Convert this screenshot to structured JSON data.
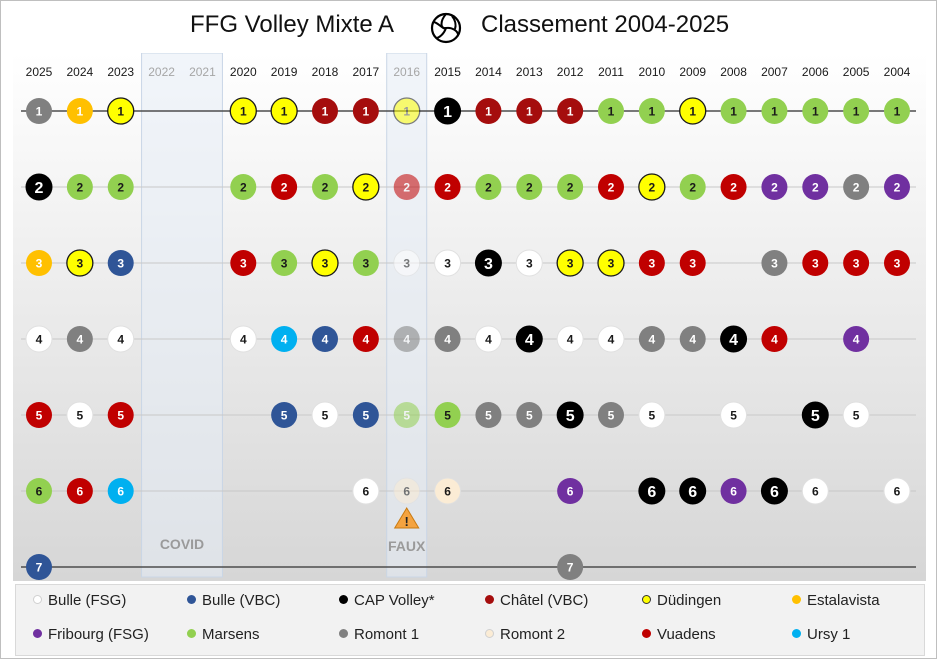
{
  "title": {
    "left": "FFG Volley Mixte A",
    "right": "Classement 2004-2025",
    "icon": "volleyball-icon"
  },
  "colors": {
    "Bulle (FSG)": "#ffffff",
    "Bulle (VBC)": "#2f5597",
    "CAP Volley*": "#000000",
    "Châtel (VBC)": "#a50d0d",
    "Düdingen": "#ffff00",
    "Estalavista": "#ffc000",
    "Fribourg (FSG)": "#7030a0",
    "Marsens": "#92d050",
    "Romont 1": "#808080",
    "Romont 2": "#fbecd5",
    "Vuadens": "#c00000",
    "Ursy 1": "#00b0f0"
  },
  "legend": [
    {
      "label": "Bulle (FSG)",
      "color": "#ffffff"
    },
    {
      "label": "Bulle (VBC)",
      "color": "#2f5597"
    },
    {
      "label": "CAP Volley*",
      "color": "#000000"
    },
    {
      "label": "Châtel (VBC)",
      "color": "#a50d0d"
    },
    {
      "label": "Düdingen",
      "color": "#ffff00"
    },
    {
      "label": "Estalavista",
      "color": "#ffc000"
    },
    {
      "label": "Fribourg (FSG)",
      "color": "#7030a0"
    },
    {
      "label": "Marsens",
      "color": "#92d050"
    },
    {
      "label": "Romont 1",
      "color": "#808080"
    },
    {
      "label": "Romont 2",
      "color": "#fbecd5"
    },
    {
      "label": "Vuadens",
      "color": "#c00000"
    },
    {
      "label": "Ursy 1",
      "color": "#00b0f0"
    }
  ],
  "chart_data": {
    "type": "scatter",
    "title": "FFG Volley Mixte A  Classement 2004-2025",
    "years": [
      "2025",
      "2024",
      "2023",
      "2022",
      "2021",
      "2020",
      "2019",
      "2018",
      "2017",
      "2016",
      "2015",
      "2014",
      "2013",
      "2012",
      "2011",
      "2010",
      "2009",
      "2008",
      "2007",
      "2006",
      "2005",
      "2004"
    ],
    "muted_years": [
      "2022",
      "2021",
      "2016"
    ],
    "ranks": [
      1,
      2,
      3,
      4,
      5,
      6,
      7
    ],
    "bands": [
      {
        "years": [
          "2022",
          "2021"
        ],
        "label": "COVID",
        "warning": false
      },
      {
        "years": [
          "2016"
        ],
        "label": "FAUX",
        "warning": true
      }
    ],
    "standings": {
      "2025": [
        "Romont 1",
        "CAP Volley*",
        "Estalavista",
        "Bulle (FSG)",
        "Vuadens",
        "Marsens",
        "Bulle (VBC)"
      ],
      "2024": [
        "Estalavista",
        "Marsens",
        "Düdingen",
        "Romont 1",
        "Bulle (FSG)",
        "Vuadens"
      ],
      "2023": [
        "Düdingen",
        "Marsens",
        "Bulle (VBC)",
        "Bulle (FSG)",
        "Vuadens",
        "Ursy 1"
      ],
      "2020": [
        "Düdingen",
        "Marsens",
        "Vuadens",
        "Bulle (FSG)"
      ],
      "2019": [
        "Düdingen",
        "Vuadens",
        "Marsens",
        "Ursy 1",
        "Bulle (VBC)"
      ],
      "2018": [
        "Châtel (VBC)",
        "Marsens",
        "Düdingen",
        "Bulle (VBC)",
        "Bulle (FSG)"
      ],
      "2017": [
        "Châtel (VBC)",
        "Düdingen",
        "Marsens",
        "Vuadens",
        "Bulle (VBC)",
        "Bulle (FSG)"
      ],
      "2016": [
        "Düdingen",
        "Vuadens",
        "Bulle (FSG)",
        "Romont 1",
        "Marsens",
        "Romont 2"
      ],
      "2015": [
        "CAP Volley*",
        "Vuadens",
        "Bulle (FSG)",
        "Romont 1",
        "Marsens",
        "Romont 2"
      ],
      "2014": [
        "Châtel (VBC)",
        "Marsens",
        "CAP Volley*",
        "Bulle (FSG)",
        "Romont 1"
      ],
      "2013": [
        "Châtel (VBC)",
        "Marsens",
        "Bulle (FSG)",
        "CAP Volley*",
        "Romont 1"
      ],
      "2012": [
        "Châtel (VBC)",
        "Marsens",
        "Düdingen",
        "Bulle (FSG)",
        "CAP Volley*",
        "Fribourg (FSG)",
        "Romont 1"
      ],
      "2011": [
        "Marsens",
        "Vuadens",
        "Düdingen",
        "Bulle (FSG)",
        "Romont 1"
      ],
      "2010": [
        "Marsens",
        "Düdingen",
        "Vuadens",
        "Romont 1",
        "Bulle (FSG)",
        "CAP Volley*"
      ],
      "2009": [
        "Düdingen",
        "Marsens",
        "Vuadens",
        "Romont 1",
        null,
        "CAP Volley*"
      ],
      "2008": [
        "Marsens",
        "Vuadens",
        null,
        "CAP Volley*",
        "Bulle (FSG)",
        "Fribourg (FSG)"
      ],
      "2007": [
        "Marsens",
        "Fribourg (FSG)",
        "Romont 1",
        "Vuadens",
        null,
        "CAP Volley*"
      ],
      "2006": [
        "Marsens",
        "Fribourg (FSG)",
        "Vuadens",
        null,
        "CAP Volley*",
        "Bulle (FSG)"
      ],
      "2005": [
        "Marsens",
        "Romont 1",
        "Vuadens",
        "Fribourg (FSG)",
        "Bulle (FSG)"
      ],
      "2004": [
        "Marsens",
        "Fribourg (FSG)",
        "Vuadens",
        null,
        null,
        "Bulle (FSG)"
      ]
    }
  }
}
